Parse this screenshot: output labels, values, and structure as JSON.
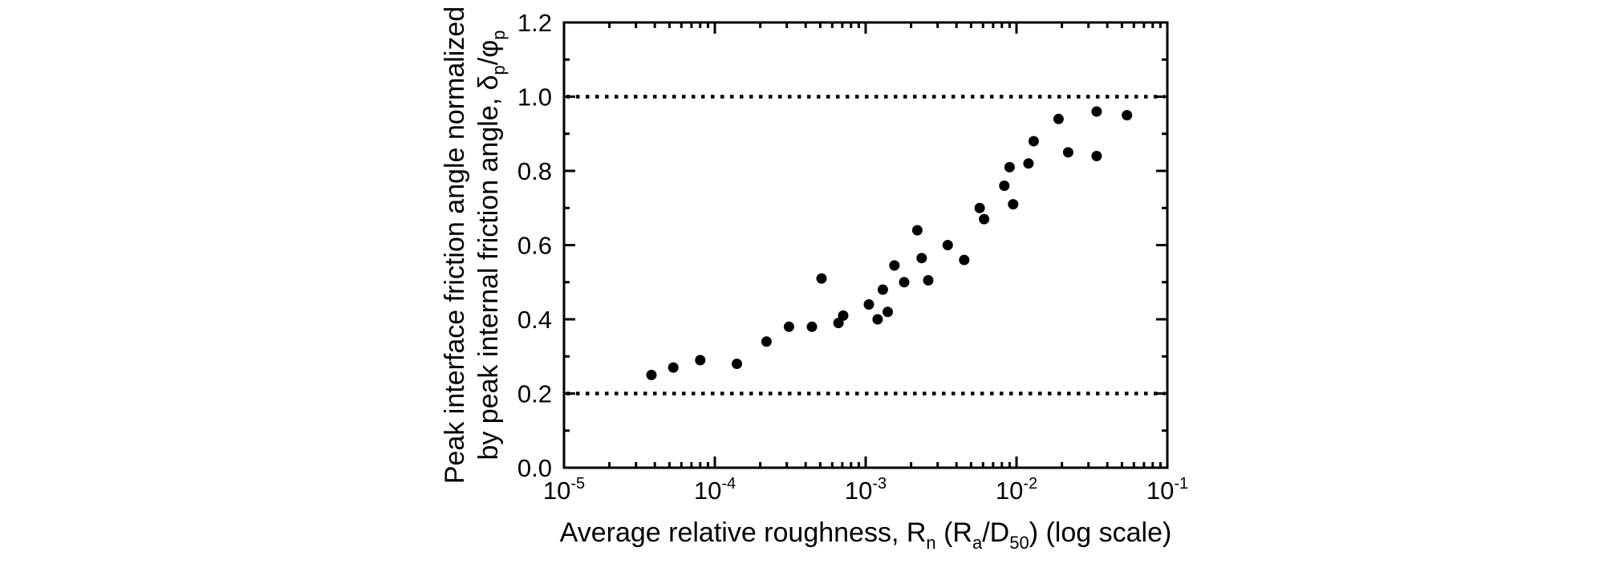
{
  "chart_data": {
    "type": "scatter",
    "title": "",
    "x_scale": "log",
    "xlim": [
      1e-05,
      0.1
    ],
    "ylim": [
      0.0,
      1.2
    ],
    "grid": false,
    "legend": "none",
    "marker_color": "#000000",
    "axis_color": "#000000",
    "x_ticks": [
      {
        "base": "10",
        "exp": "-5",
        "value": 1e-05
      },
      {
        "base": "10",
        "exp": "-4",
        "value": 0.0001
      },
      {
        "base": "10",
        "exp": "-3",
        "value": 0.001
      },
      {
        "base": "10",
        "exp": "-2",
        "value": 0.01
      },
      {
        "base": "10",
        "exp": "-1",
        "value": 0.1
      }
    ],
    "x_minor_decades": [
      -5,
      -4,
      -3,
      -2
    ],
    "x_minor_multipliers": [
      2,
      3,
      4,
      5,
      6,
      7,
      8,
      9
    ],
    "y_ticks": [
      {
        "label": "0.0",
        "value": 0.0
      },
      {
        "label": "0.2",
        "value": 0.2
      },
      {
        "label": "0.4",
        "value": 0.4
      },
      {
        "label": "0.6",
        "value": 0.6
      },
      {
        "label": "0.8",
        "value": 0.8
      },
      {
        "label": "1.0",
        "value": 1.0
      },
      {
        "label": "1.2",
        "value": 1.2
      }
    ],
    "y_minor_ticks": [
      0.1,
      0.3,
      0.5,
      0.7,
      0.9,
      1.1
    ],
    "reference_lines_y": [
      0.2,
      1.0
    ],
    "xlabel_segments": [
      {
        "t": "Average relative roughness, R"
      },
      {
        "t": "n",
        "sub": true
      },
      {
        "t": " (R"
      },
      {
        "t": "a",
        "sub": true
      },
      {
        "t": "/D"
      },
      {
        "t": "50",
        "sub": true
      },
      {
        "t": ") (log scale)"
      }
    ],
    "ylabel_line1": "Peak interface friction angle normalized",
    "ylabel_line2_segments": [
      {
        "t": "by peak internal friction angle, "
      },
      {
        "t": "δ"
      },
      {
        "t": "p",
        "sub": true
      },
      {
        "t": "/φ"
      },
      {
        "t": "p",
        "sub": true
      }
    ],
    "points": [
      [
        3.8e-05,
        0.25
      ],
      [
        5.3e-05,
        0.27
      ],
      [
        8e-05,
        0.29
      ],
      [
        0.00014,
        0.28
      ],
      [
        0.00022,
        0.34
      ],
      [
        0.00031,
        0.38
      ],
      [
        0.00044,
        0.38
      ],
      [
        0.00051,
        0.51
      ],
      [
        0.00066,
        0.39
      ],
      [
        0.00071,
        0.41
      ],
      [
        0.00105,
        0.44
      ],
      [
        0.0012,
        0.4
      ],
      [
        0.0013,
        0.48
      ],
      [
        0.0014,
        0.42
      ],
      [
        0.00155,
        0.545
      ],
      [
        0.0018,
        0.5
      ],
      [
        0.0022,
        0.64
      ],
      [
        0.00235,
        0.565
      ],
      [
        0.0026,
        0.505
      ],
      [
        0.0035,
        0.6
      ],
      [
        0.0045,
        0.56
      ],
      [
        0.0057,
        0.7
      ],
      [
        0.0061,
        0.67
      ],
      [
        0.0083,
        0.76
      ],
      [
        0.009,
        0.81
      ],
      [
        0.0095,
        0.71
      ],
      [
        0.012,
        0.82
      ],
      [
        0.013,
        0.88
      ],
      [
        0.019,
        0.94
      ],
      [
        0.022,
        0.85
      ],
      [
        0.034,
        0.96
      ],
      [
        0.034,
        0.84
      ],
      [
        0.054,
        0.95
      ]
    ]
  }
}
